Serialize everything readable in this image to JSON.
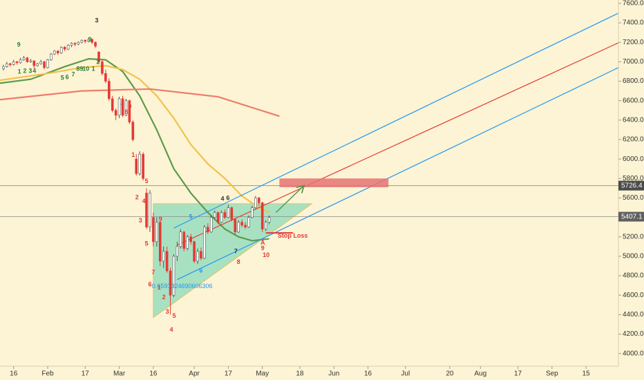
{
  "chart_data": {
    "type": "candlestick",
    "background": "#fcf4d4",
    "xlim": [
      -4,
      177.5
    ],
    "ylim": [
      3870,
      7635
    ],
    "xticks": [
      {
        "value": 0,
        "label": "16"
      },
      {
        "value": 10,
        "label": "Feb"
      },
      {
        "value": 21,
        "label": "17"
      },
      {
        "value": 31,
        "label": "Mar"
      },
      {
        "value": 41,
        "label": "16"
      },
      {
        "value": 53,
        "label": "Apr"
      },
      {
        "value": 63,
        "label": "17"
      },
      {
        "value": 73,
        "label": "May"
      },
      {
        "value": 84,
        "label": "18"
      },
      {
        "value": 94,
        "label": "Jun"
      },
      {
        "value": 104,
        "label": "16"
      },
      {
        "value": 115,
        "label": "Jul"
      },
      {
        "value": 128,
        "label": "20"
      },
      {
        "value": 137,
        "label": "Aug"
      },
      {
        "value": 148,
        "label": "17"
      },
      {
        "value": 158,
        "label": "Sep"
      },
      {
        "value": 168,
        "label": "15"
      }
    ],
    "yticks": [
      {
        "value": 4000,
        "label": "4000.0"
      },
      {
        "value": 4200,
        "label": "4200.0"
      },
      {
        "value": 4400,
        "label": "4400.0"
      },
      {
        "value": 4600,
        "label": "4600.0"
      },
      {
        "value": 4800,
        "label": "4800.0"
      },
      {
        "value": 5000,
        "label": "5000.0"
      },
      {
        "value": 5200,
        "label": "5200.0"
      },
      {
        "value": 5400,
        "label": "5400.0"
      },
      {
        "value": 5600,
        "label": "5600.0"
      },
      {
        "value": 5800,
        "label": "5800.0"
      },
      {
        "value": 6000,
        "label": "6000.0"
      },
      {
        "value": 6200,
        "label": "6200.0"
      },
      {
        "value": 6400,
        "label": "6400.0"
      },
      {
        "value": 6600,
        "label": "6600.0"
      },
      {
        "value": 6800,
        "label": "6800.0"
      },
      {
        "value": 7000,
        "label": "7000.0"
      },
      {
        "value": 7200,
        "label": "7200.0"
      },
      {
        "value": 7400,
        "label": "7400.0"
      },
      {
        "value": 7600,
        "label": "7600.0"
      }
    ],
    "up_color": "#ffffff",
    "down_color": "#e53935",
    "candles": {
      "x": [
        -3,
        -2,
        -1,
        0,
        1,
        2,
        3,
        4,
        5,
        6,
        7,
        8,
        9,
        10,
        11,
        12,
        13,
        14,
        15,
        16,
        17,
        18,
        19,
        20,
        21,
        22,
        23,
        24,
        25,
        26,
        27,
        28,
        29,
        30,
        31,
        32,
        33,
        34,
        35,
        36,
        37,
        38,
        39,
        40,
        41,
        42,
        43,
        44,
        45,
        46,
        47,
        48,
        49,
        50,
        51,
        52,
        53,
        54,
        55,
        56,
        57,
        58,
        59,
        60,
        61,
        62,
        63,
        64,
        65,
        66,
        67,
        68,
        69,
        70,
        71,
        72,
        73,
        74,
        75
      ],
      "ohlc": [
        [
          6930,
          6970,
          6910,
          6950
        ],
        [
          6950,
          7000,
          6940,
          6980
        ],
        [
          6980,
          6990,
          6950,
          6970
        ],
        [
          6970,
          7020,
          6960,
          7000
        ],
        [
          7000,
          7010,
          6970,
          6990
        ],
        [
          6990,
          7040,
          6980,
          7020
        ],
        [
          7020,
          7060,
          7010,
          7040
        ],
        [
          7040,
          7050,
          6990,
          7000
        ],
        [
          7000,
          7030,
          6990,
          7010
        ],
        [
          7010,
          7010,
          6930,
          6960
        ],
        [
          6960,
          6990,
          6950,
          6980
        ],
        [
          6980,
          7020,
          6970,
          7000
        ],
        [
          7000,
          7010,
          6920,
          6940
        ],
        [
          6940,
          7030,
          6930,
          7020
        ],
        [
          7020,
          7090,
          7010,
          7080
        ],
        [
          7080,
          7120,
          7070,
          7110
        ],
        [
          7110,
          7120,
          7070,
          7090
        ],
        [
          7090,
          7160,
          7080,
          7150
        ],
        [
          7150,
          7160,
          7110,
          7130
        ],
        [
          7130,
          7180,
          7120,
          7170
        ],
        [
          7170,
          7200,
          7150,
          7190
        ],
        [
          7190,
          7200,
          7160,
          7180
        ],
        [
          7180,
          7210,
          7170,
          7200
        ],
        [
          7200,
          7230,
          7190,
          7220
        ],
        [
          7220,
          7230,
          7190,
          7210
        ],
        [
          7210,
          7250,
          7200,
          7230
        ],
        [
          7230,
          7240,
          7180,
          7200
        ],
        [
          7200,
          7210,
          7140,
          7160
        ],
        [
          7100,
          7110,
          6980,
          7000
        ],
        [
          7000,
          7020,
          6860,
          6880
        ],
        [
          6880,
          6920,
          6780,
          6800
        ],
        [
          6800,
          6830,
          6600,
          6620
        ],
        [
          6620,
          6650,
          6480,
          6500
        ],
        [
          6500,
          6520,
          6400,
          6450
        ],
        [
          6450,
          6640,
          6420,
          6620
        ],
        [
          6620,
          6650,
          6430,
          6450
        ],
        [
          6450,
          6620,
          6440,
          6600
        ],
        [
          6600,
          6610,
          6360,
          6380
        ],
        [
          6380,
          6400,
          6180,
          6200
        ],
        [
          6000,
          6050,
          5830,
          5850
        ],
        [
          5850,
          6080,
          5830,
          6050
        ],
        [
          6050,
          6070,
          5780,
          5800
        ],
        [
          5650,
          5700,
          5280,
          5300
        ],
        [
          5300,
          5680,
          5250,
          5650
        ],
        [
          5400,
          5450,
          5100,
          5150
        ],
        [
          5150,
          5400,
          5100,
          5350
        ],
        [
          5350,
          5360,
          4900,
          4950
        ],
        [
          4950,
          5100,
          4880,
          5050
        ],
        [
          5050,
          5100,
          4830,
          4850
        ],
        [
          4850,
          4880,
          4400,
          4600
        ],
        [
          4600,
          5020,
          4580,
          5000
        ],
        [
          5000,
          5150,
          4950,
          5100
        ],
        [
          5100,
          5280,
          5080,
          5250
        ],
        [
          5250,
          5260,
          5050,
          5080
        ],
        [
          5080,
          5220,
          5060,
          5200
        ],
        [
          5200,
          5230,
          5120,
          5150
        ],
        [
          5150,
          5160,
          4930,
          4950
        ],
        [
          4950,
          5080,
          4920,
          5050
        ],
        [
          5050,
          5090,
          4960,
          4980
        ],
        [
          4980,
          5320,
          4970,
          5300
        ],
        [
          5300,
          5340,
          5230,
          5250
        ],
        [
          5250,
          5420,
          5240,
          5400
        ],
        [
          5400,
          5470,
          5380,
          5450
        ],
        [
          5450,
          5460,
          5330,
          5350
        ],
        [
          5350,
          5470,
          5340,
          5450
        ],
        [
          5450,
          5480,
          5380,
          5400
        ],
        [
          5400,
          5530,
          5390,
          5500
        ],
        [
          5500,
          5510,
          5360,
          5380
        ],
        [
          5380,
          5390,
          5220,
          5250
        ],
        [
          5250,
          5370,
          5240,
          5350
        ],
        [
          5350,
          5380,
          5300,
          5320
        ],
        [
          5320,
          5350,
          5280,
          5300
        ],
        [
          5300,
          5420,
          5290,
          5400
        ],
        [
          5400,
          5520,
          5390,
          5500
        ],
        [
          5500,
          5620,
          5490,
          5600
        ],
        [
          5600,
          5610,
          5520,
          5550
        ],
        [
          5550,
          5560,
          5250,
          5280
        ],
        [
          5280,
          5370,
          5260,
          5350
        ],
        [
          5350,
          5420,
          5330,
          5400
        ]
      ]
    },
    "moving_averages": [
      {
        "color": "#5b9a4a",
        "x": [
          -4,
          5,
          15,
          22,
          27,
          32,
          37,
          42,
          47,
          52,
          57,
          62,
          66,
          70,
          75
        ],
        "values": [
          6780,
          6820,
          6950,
          7030,
          7020,
          6900,
          6650,
          6300,
          5900,
          5650,
          5450,
          5280,
          5200,
          5160,
          5180
        ]
      },
      {
        "color": "#f2c14e",
        "x": [
          -4,
          10,
          20,
          27,
          32,
          37,
          42,
          47,
          52,
          57,
          62,
          67,
          72,
          75
        ],
        "values": [
          6810,
          6880,
          6940,
          6960,
          6920,
          6820,
          6650,
          6420,
          6150,
          5950,
          5800,
          5620,
          5500,
          5450
        ]
      },
      {
        "color": "#ef7b6b",
        "x": [
          -4,
          20,
          40,
          60,
          78
        ],
        "values": [
          6610,
          6700,
          6720,
          6640,
          6440
        ]
      }
    ],
    "trend_lines": [
      {
        "color": "#2196f3",
        "points": [
          [
            47,
            5290
          ],
          [
            177.5,
            7500
          ]
        ]
      },
      {
        "color": "#e53935",
        "points": [
          [
            48,
            5115
          ],
          [
            177.5,
            7195
          ]
        ]
      },
      {
        "color": "#2196f3",
        "points": [
          [
            48,
            4760
          ],
          [
            177.5,
            6940
          ]
        ]
      }
    ],
    "price_lines": [
      5726.4,
      5407.1
    ],
    "zone": {
      "color": "#e57373",
      "x": [
        78,
        110
      ],
      "y": [
        5710,
        5800
      ]
    },
    "triangle": {
      "color": "#6fd3b4",
      "points": [
        [
          41,
          5540
        ],
        [
          87.5,
          5540
        ],
        [
          41,
          4370
        ]
      ]
    },
    "arrow": {
      "color": "#5b9a4a",
      "points": [
        [
          77,
          5450
        ],
        [
          85,
          5720
        ]
      ]
    },
    "stop_loss": {
      "color": "#e53935",
      "x": [
        74,
        82
      ],
      "y": 5240,
      "label": "Stop Loss",
      "label_x": 77.5,
      "label_y": 5207
    },
    "annotations": [
      {
        "text": "9",
        "x": 1.5,
        "y": 7174,
        "color": "#2e7d32"
      },
      {
        "text": "1",
        "x": 1.7,
        "y": 6897,
        "color": "#2e7d32"
      },
      {
        "text": "2",
        "x": 3.3,
        "y": 6904,
        "color": "#2e7d32"
      },
      {
        "text": "3",
        "x": 4.9,
        "y": 6904,
        "color": "#2e7d32"
      },
      {
        "text": "4",
        "x": 6.1,
        "y": 6904,
        "color": "#2e7d32"
      },
      {
        "text": "5",
        "x": 14.3,
        "y": 6833,
        "color": "#2e7d32"
      },
      {
        "text": "6",
        "x": 15.7,
        "y": 6840,
        "color": "#2e7d32"
      },
      {
        "text": "7",
        "x": 17.5,
        "y": 6868,
        "color": "#2e7d32"
      },
      {
        "text": "8",
        "x": 18.9,
        "y": 6925,
        "color": "#2e7d32"
      },
      {
        "text": "9",
        "x": 19.9,
        "y": 6925,
        "color": "#2e7d32"
      },
      {
        "text": "10",
        "x": 21.2,
        "y": 6925,
        "color": "#2e7d32"
      },
      {
        "text": "1",
        "x": 23.4,
        "y": 6925,
        "color": "#2e7d32"
      },
      {
        "text": "2",
        "x": 24.8,
        "y": 6996,
        "color": "#2e7d32"
      },
      {
        "text": "9",
        "x": 22.4,
        "y": 7224,
        "color": "#2e7d32"
      },
      {
        "text": "3",
        "x": 24.4,
        "y": 7422,
        "color": "#333333"
      },
      {
        "text": "7",
        "x": 31.9,
        "y": 6535,
        "color": "#e53935"
      },
      {
        "text": "8",
        "x": 33.1,
        "y": 6478,
        "color": "#e53935"
      },
      {
        "text": "9",
        "x": 34.1,
        "y": 6535,
        "color": "#e53935"
      },
      {
        "text": "1",
        "x": 35.1,
        "y": 6038,
        "color": "#e53935"
      },
      {
        "text": "2",
        "x": 36.2,
        "y": 5604,
        "color": "#e53935"
      },
      {
        "text": "4",
        "x": 38.2,
        "y": 5562,
        "color": "#e53935"
      },
      {
        "text": "3",
        "x": 37.2,
        "y": 5363,
        "color": "#e53935"
      },
      {
        "text": "5",
        "x": 39.0,
        "y": 5768,
        "color": "#e53935"
      },
      {
        "text": "9",
        "x": 43.1,
        "y": 5377,
        "color": "#e53935"
      },
      {
        "text": "5",
        "x": 39.0,
        "y": 5128,
        "color": "#e53935"
      },
      {
        "text": "7",
        "x": 41.0,
        "y": 4830,
        "color": "#e53935"
      },
      {
        "text": "6",
        "x": 40.0,
        "y": 4709,
        "color": "#e53935"
      },
      {
        "text": "1",
        "x": 42.7,
        "y": 4674,
        "color": "#e53935"
      },
      {
        "text": "2",
        "x": 44.1,
        "y": 4575,
        "color": "#e53935"
      },
      {
        "text": "3",
        "x": 45.1,
        "y": 4425,
        "color": "#e53935"
      },
      {
        "text": "5",
        "x": 47.1,
        "y": 4383,
        "color": "#e53935"
      },
      {
        "text": "4",
        "x": 46.3,
        "y": 4241,
        "color": "#e53935"
      },
      {
        "text": "8",
        "x": 66.0,
        "y": 4937,
        "color": "#e53935"
      },
      {
        "text": "A",
        "x": 73.1,
        "y": 5136,
        "color": "#e53935"
      },
      {
        "text": "9",
        "x": 73.1,
        "y": 5079,
        "color": "#e53935"
      },
      {
        "text": "10",
        "x": 74.1,
        "y": 5008,
        "color": "#e53935"
      },
      {
        "text": "5",
        "x": 52.0,
        "y": 5405,
        "color": "#2196f3"
      },
      {
        "text": "6",
        "x": 55.0,
        "y": 4851,
        "color": "#2196f3"
      },
      {
        "text": "4",
        "x": 61.3,
        "y": 5590,
        "color": "#333333"
      },
      {
        "text": "6",
        "x": 62.9,
        "y": 5597,
        "color": "#333333"
      },
      {
        "text": "7",
        "x": 65.2,
        "y": 5050,
        "color": "#333333"
      },
      {
        "text": "0.6591324690606306",
        "x": 40.6,
        "y": 4688,
        "color": "#2196f3"
      }
    ]
  }
}
